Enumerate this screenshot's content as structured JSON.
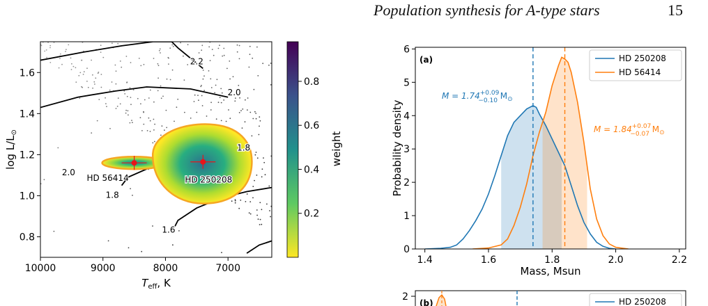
{
  "page": {
    "running_title": "Population synthesis for A-type stars",
    "page_number": "15"
  },
  "chart_data": [
    {
      "type": "scatter",
      "xlabel_main": "T",
      "xlabel_sub": "eff",
      "xlabel_tail": ", K",
      "ylabel_main": "log L/L",
      "ylabel_sun": "⊙",
      "xlim": [
        10000,
        6300
      ],
      "ylim": [
        0.7,
        1.75
      ],
      "x_ticks": [
        "10000",
        "9000",
        "8000",
        "7000"
      ],
      "y_ticks": [
        "0.8",
        "1.0",
        "1.2",
        "1.4",
        "1.6"
      ],
      "x_tick_values": [
        10000,
        9000,
        8000,
        7000
      ],
      "y_tick_values": [
        0.8,
        1.0,
        1.2,
        1.4,
        1.6
      ],
      "stars": [
        {
          "name": "HD 56414",
          "teff": 8500,
          "logL": 1.16
        },
        {
          "name": "HD 250208",
          "teff": 7400,
          "logL": 1.165
        }
      ],
      "tracks": [
        {
          "label": "2.2",
          "points": [
            [
              10000,
              1.66
            ],
            [
              9300,
              1.7
            ],
            [
              8700,
              1.73
            ],
            [
              8200,
              1.75
            ],
            [
              7900,
              1.75
            ],
            [
              7800,
              1.72
            ],
            [
              7400,
              1.62
            ]
          ]
        },
        {
          "label": "2.0",
          "points": [
            [
              10000,
              1.43
            ],
            [
              9400,
              1.48
            ],
            [
              8800,
              1.51
            ],
            [
              8300,
              1.53
            ],
            [
              7600,
              1.52
            ],
            [
              7000,
              1.48
            ]
          ]
        },
        {
          "label": "1.8",
          "points": [
            [
              8700,
              1.05
            ],
            [
              8600,
              1.09
            ],
            [
              8300,
              1.13
            ],
            [
              8000,
              1.16
            ],
            [
              7600,
              1.18
            ],
            [
              7200,
              1.2
            ],
            [
              6750,
              1.21
            ]
          ]
        },
        {
          "label": "1.6",
          "points": [
            [
              7850,
              0.85
            ],
            [
              7800,
              0.88
            ],
            [
              7500,
              0.94
            ],
            [
              7100,
              0.99
            ],
            [
              6700,
              1.02
            ],
            [
              6300,
              1.04
            ]
          ]
        },
        {
          "label": "",
          "points": [
            [
              6700,
              0.72
            ],
            [
              6500,
              0.76
            ],
            [
              6300,
              0.78
            ]
          ]
        }
      ],
      "track_labels": [
        {
          "text": "2.2",
          "teff": 7500,
          "logL": 1.64
        },
        {
          "text": "2.0",
          "teff": 6900,
          "logL": 1.49
        },
        {
          "text": "2.0",
          "teff": 9550,
          "logL": 1.1
        },
        {
          "text": "1.8",
          "teff": 6750,
          "logL": 1.22
        },
        {
          "text": "1.8",
          "teff": 8850,
          "logL": 0.99
        },
        {
          "text": "1.6",
          "teff": 7950,
          "logL": 0.82
        }
      ],
      "colorbar": {
        "label": "weight",
        "ticks": [
          "0.2",
          "0.4",
          "0.6",
          "0.8"
        ],
        "tick_values": [
          0.2,
          0.4,
          0.6,
          0.8
        ],
        "range": [
          0.0,
          0.98
        ]
      },
      "colors": {
        "track": "#000000",
        "contour": "#f5a623",
        "marker": "#e8141a",
        "points": "#555555"
      }
    },
    {
      "type": "line",
      "panel_label": "(a)",
      "xlabel": "Mass, Msun",
      "ylabel": "Probability density",
      "xlim": [
        1.37,
        2.22
      ],
      "ylim": [
        0,
        6.05
      ],
      "x_ticks": [
        "1.4",
        "1.6",
        "1.8",
        "2.0",
        "2.2"
      ],
      "y_ticks": [
        "0",
        "1",
        "2",
        "3",
        "4",
        "5",
        "6"
      ],
      "x_tick_values": [
        1.4,
        1.6,
        1.8,
        2.0,
        2.2
      ],
      "y_tick_values": [
        0,
        1,
        2,
        3,
        4,
        5,
        6
      ],
      "series": [
        {
          "name": "HD 250208",
          "color": "#1f77b4",
          "median": 1.74,
          "ci": [
            1.64,
            1.83
          ],
          "x": [
            1.4,
            1.45,
            1.48,
            1.5,
            1.52,
            1.54,
            1.56,
            1.58,
            1.6,
            1.62,
            1.64,
            1.66,
            1.68,
            1.7,
            1.72,
            1.74,
            1.75,
            1.76,
            1.78,
            1.8,
            1.82,
            1.84,
            1.86,
            1.88,
            1.9,
            1.92,
            1.94,
            1.96,
            1.98,
            2.0
          ],
          "y": [
            0,
            0.02,
            0.05,
            0.12,
            0.3,
            0.55,
            0.85,
            1.2,
            1.65,
            2.2,
            2.8,
            3.4,
            3.8,
            4.0,
            4.2,
            4.3,
            4.25,
            4.05,
            3.7,
            3.3,
            2.9,
            2.5,
            1.9,
            1.3,
            0.8,
            0.45,
            0.2,
            0.08,
            0.02,
            0
          ]
        },
        {
          "name": "HD 56414",
          "color": "#ff7f0e",
          "median": 1.84,
          "ci": [
            1.77,
            1.91
          ],
          "x": [
            1.55,
            1.6,
            1.64,
            1.66,
            1.68,
            1.7,
            1.72,
            1.74,
            1.76,
            1.78,
            1.8,
            1.82,
            1.83,
            1.84,
            1.85,
            1.86,
            1.88,
            1.9,
            1.92,
            1.94,
            1.96,
            1.98,
            2.0,
            2.04
          ],
          "y": [
            0,
            0.03,
            0.12,
            0.3,
            0.7,
            1.25,
            1.95,
            2.8,
            3.5,
            4.1,
            4.9,
            5.5,
            5.75,
            5.7,
            5.6,
            5.3,
            4.4,
            3.2,
            1.8,
            0.9,
            0.4,
            0.15,
            0.05,
            0
          ]
        }
      ],
      "annotations": [
        {
          "series": "HD 250208",
          "prefix": "M = 1.74",
          "sup": "+0.09",
          "sub": "−0.10",
          "unit": " M",
          "sun": "⊙"
        },
        {
          "series": "HD 56414",
          "prefix": "M = 1.84",
          "sup": "+0.07",
          "sub": "−0.07",
          "unit": " M",
          "sun": "⊙"
        }
      ],
      "legend": "top-right"
    },
    {
      "type": "line",
      "panel_label": "(b)",
      "y_ticks": [
        "2"
      ],
      "y_tick_values": [
        2
      ],
      "legend_entries": [
        "HD 250208"
      ],
      "legend": "top-right"
    }
  ]
}
